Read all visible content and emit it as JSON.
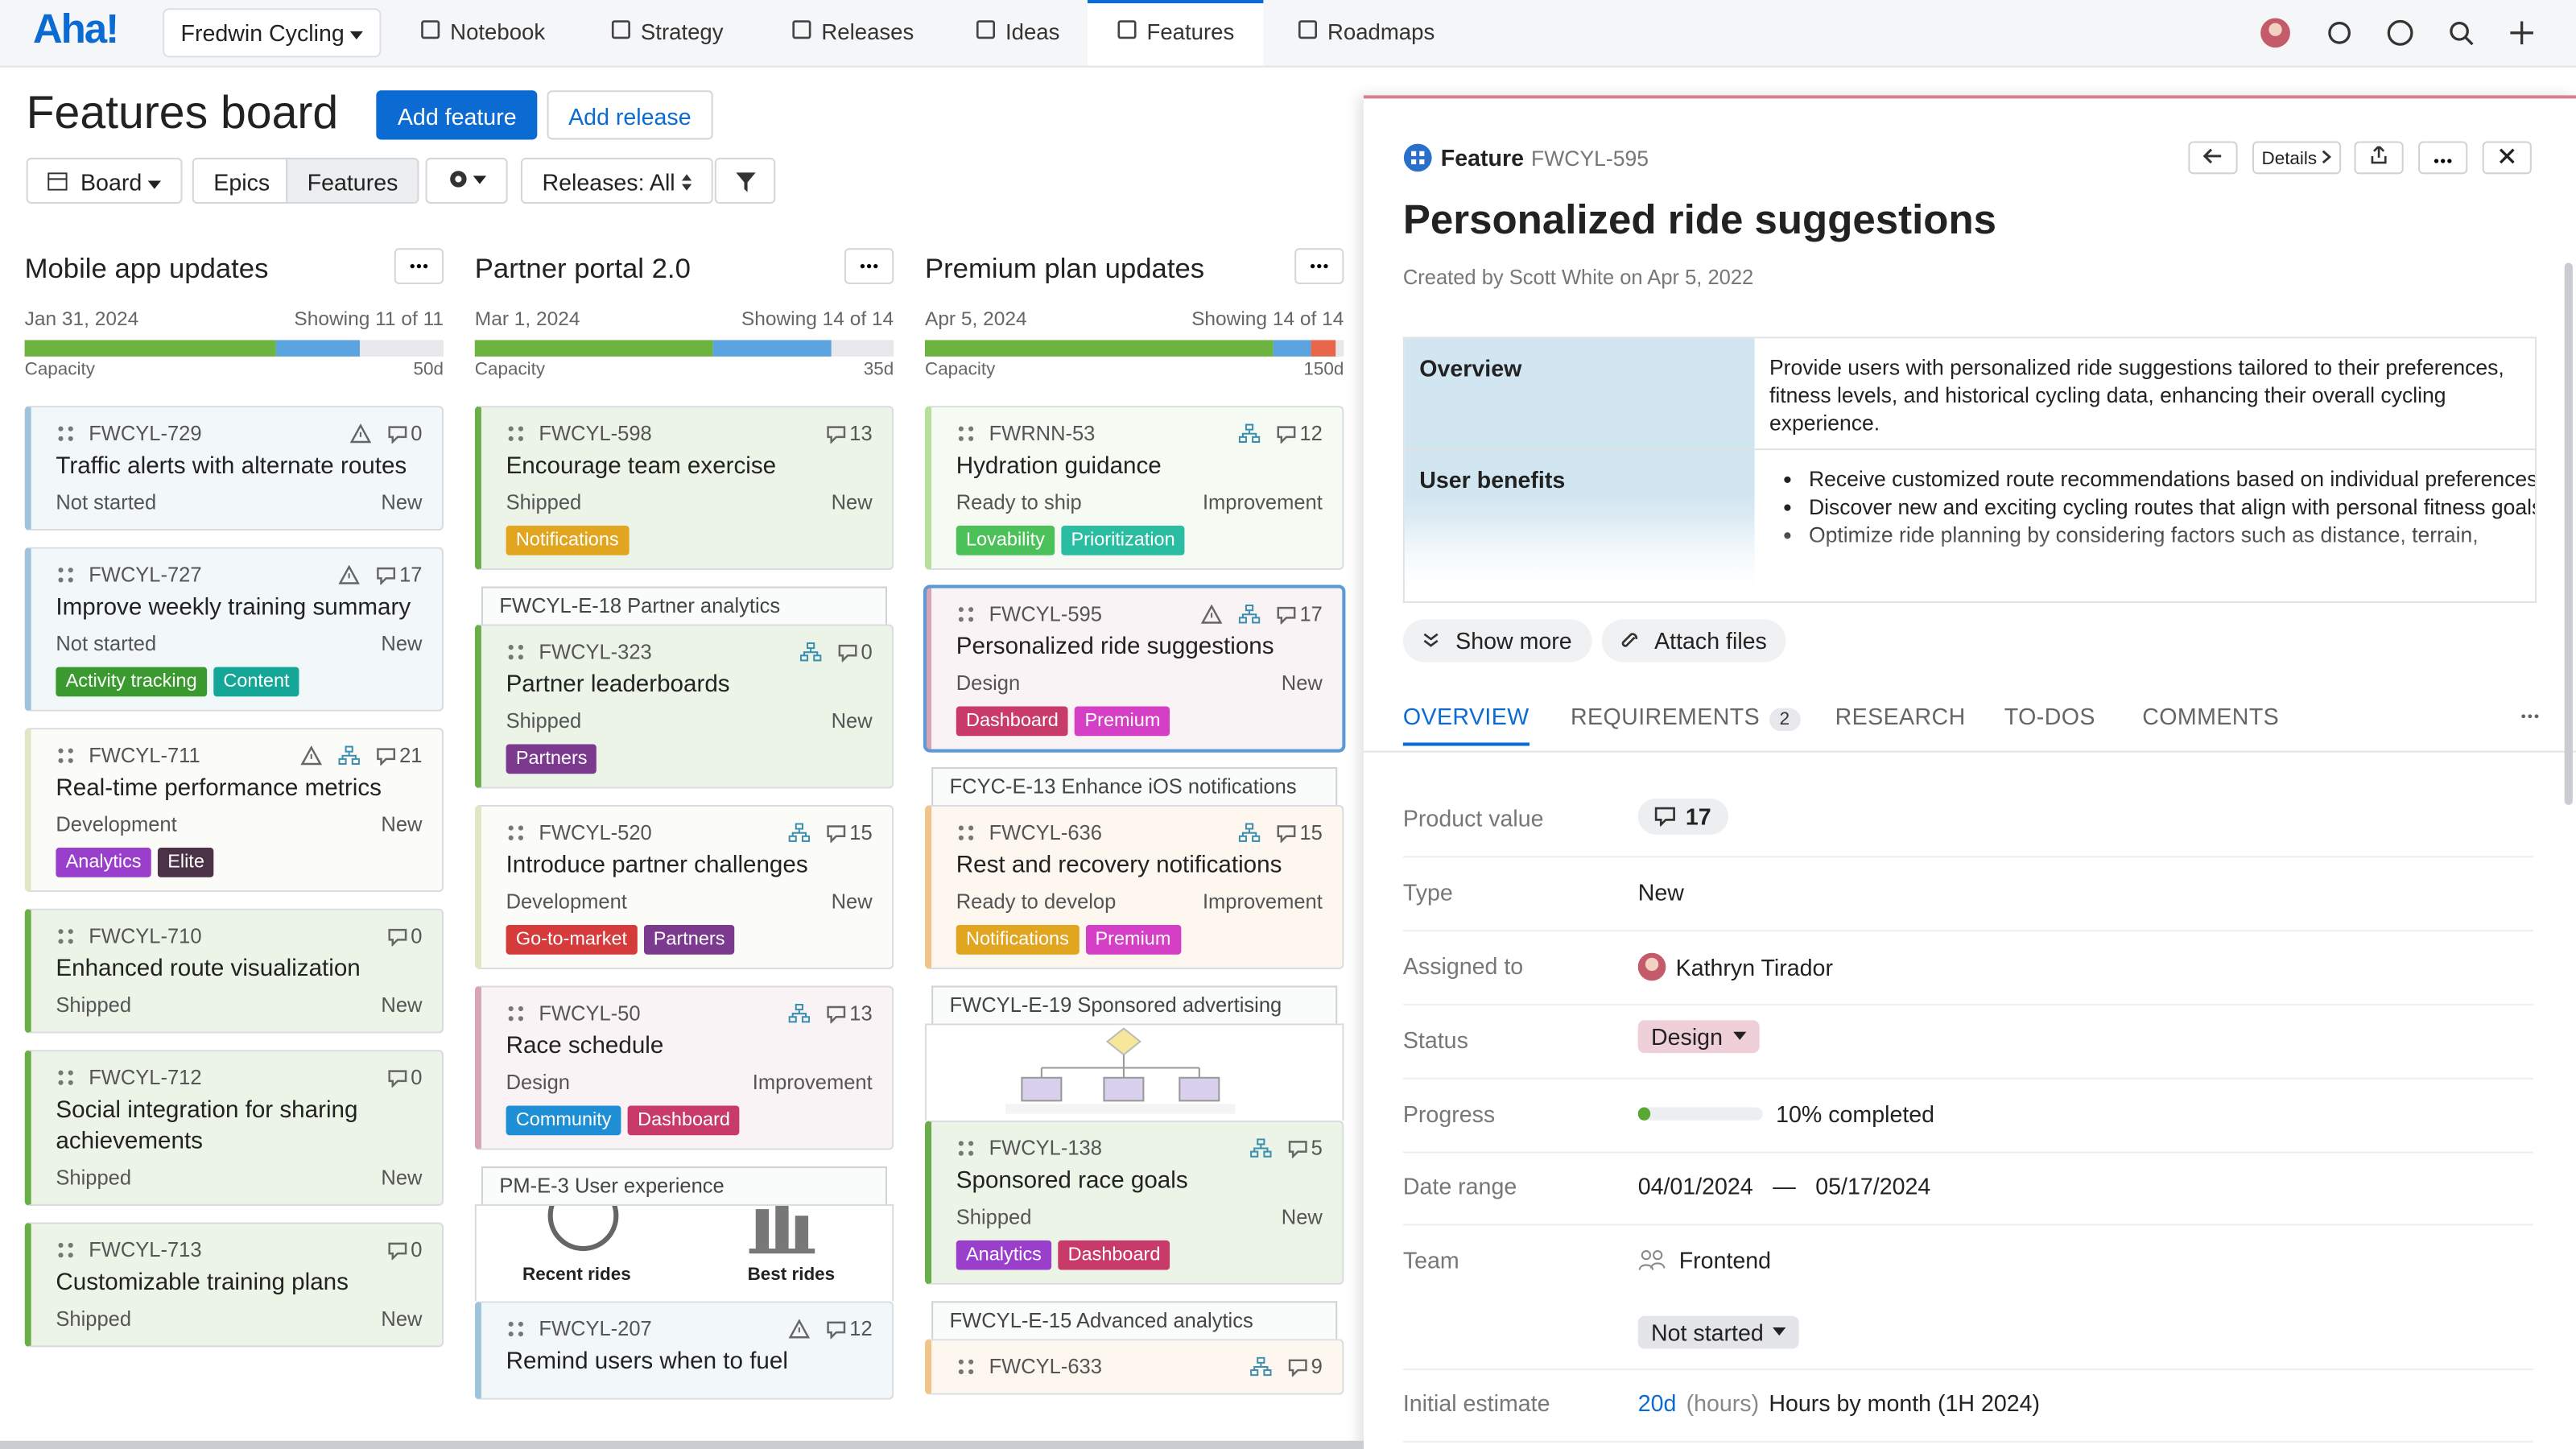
{
  "nav": {
    "logo": "Aha!",
    "workspace": "Fredwin Cycling",
    "tabs": [
      "Notebook",
      "Strategy",
      "Releases",
      "Ideas",
      "Features",
      "Roadmaps"
    ],
    "active_tab": 4
  },
  "toolbar": {
    "title": "Features board",
    "add_feature": "Add feature",
    "add_release": "Add release",
    "board": "Board",
    "epics": "Epics",
    "features": "Features",
    "releases_filter": "Releases: All"
  },
  "columns": [
    {
      "name": "Mobile app updates",
      "date": "Jan 31, 2024",
      "showing": "Showing 11 of 11",
      "capacity_label": "Capacity",
      "capacity": "50d",
      "items": [
        {
          "id": "FWCYL-729",
          "warning": true,
          "comments": 0,
          "title": "Traffic alerts with alternate routes",
          "status": "Not started",
          "type": "New",
          "color": "#9fc3db",
          "tags": []
        },
        {
          "id": "FWCYL-727",
          "warning": true,
          "comments": 17,
          "title": "Improve weekly training summary",
          "status": "Not started",
          "type": "New",
          "color": "#9fc3db",
          "tags": [
            {
              "label": "Activity tracking",
              "color": "#3b9a2f"
            },
            {
              "label": "Content",
              "color": "#14a697"
            }
          ]
        },
        {
          "id": "FWCYL-711",
          "warning": true,
          "children": true,
          "comments": 21,
          "title": "Real-time performance metrics",
          "status": "Development",
          "type": "New",
          "color": "#e3e6c6",
          "tags": [
            {
              "label": "Analytics",
              "color": "#9a3fcb"
            },
            {
              "label": "Elite",
              "color": "#4b3246"
            }
          ]
        },
        {
          "id": "FWCYL-710",
          "comments": 0,
          "title": "Enhanced route visualization",
          "status": "Shipped",
          "type": "New",
          "color": "#6aae4a",
          "tags": []
        },
        {
          "id": "FWCYL-712",
          "comments": 0,
          "title": "Social integration for sharing achievements",
          "status": "Shipped",
          "type": "New",
          "color": "#6aae4a",
          "tags": []
        },
        {
          "id": "FWCYL-713",
          "comments": 0,
          "title": "Customizable training plans",
          "status": "Shipped",
          "type": "New",
          "color": "#6aae4a",
          "tags": []
        }
      ]
    },
    {
      "name": "Partner portal 2.0",
      "date": "Mar 1, 2024",
      "showing": "Showing 14 of 14",
      "capacity_label": "Capacity",
      "capacity": "35d",
      "items": [
        {
          "id": "FWCYL-598",
          "comments": 13,
          "title": "Encourage team exercise",
          "status": "Shipped",
          "type": "New",
          "color": "#6aae4a",
          "tags": [
            {
              "label": "Notifications",
              "color": "#e1a520"
            }
          ]
        },
        {
          "epic": "FWCYL-E-18 Partner analytics"
        },
        {
          "id": "FWCYL-323",
          "children": true,
          "comments": 0,
          "title": "Partner leaderboards",
          "status": "Shipped",
          "type": "New",
          "color": "#6aae4a",
          "tags": [
            {
              "label": "Partners",
              "color": "#7b3a8e"
            }
          ]
        },
        {
          "id": "FWCYL-520",
          "children": true,
          "comments": 15,
          "title": "Introduce partner challenges",
          "status": "Development",
          "type": "New",
          "color": "#e3e6c6",
          "tags": [
            {
              "label": "Go-to-market",
              "color": "#d63b3b"
            },
            {
              "label": "Partners",
              "color": "#7b3a8e"
            }
          ]
        },
        {
          "id": "FWCYL-50",
          "children": true,
          "comments": 13,
          "title": "Race schedule",
          "status": "Design",
          "type": "Improvement",
          "color": "#d8a3b3",
          "tags": [
            {
              "label": "Community",
              "color": "#1e8fd5"
            },
            {
              "label": "Dashboard",
              "color": "#c83a6a"
            }
          ]
        },
        {
          "epic": "PM-E-3 User experience",
          "image_labels": [
            "Recent rides",
            "Best rides"
          ]
        },
        {
          "id": "FWCYL-207",
          "warning": true,
          "comments": 12,
          "title": "Remind users when to fuel",
          "status": "",
          "type": "",
          "color": "#9fc3db",
          "tags": []
        }
      ]
    },
    {
      "name": "Premium plan updates",
      "date": "Apr 5, 2024",
      "showing": "Showing 14 of 14",
      "capacity_label": "Capacity",
      "capacity": "150d",
      "items": [
        {
          "id": "FWRNN-53",
          "children": true,
          "comments": 12,
          "title": "Hydration guidance",
          "status": "Ready to ship",
          "type": "Improvement",
          "color": "#b6e09a",
          "tags": [
            {
              "label": "Lovability",
              "color": "#4cc15a"
            },
            {
              "label": "Prioritization",
              "color": "#2bbda2"
            }
          ]
        },
        {
          "id": "FWCYL-595",
          "warning": true,
          "children": true,
          "comments": 17,
          "title": "Personalized ride suggestions",
          "status": "Design",
          "type": "New",
          "color": "#d8a3b3",
          "selected": true,
          "tags": [
            {
              "label": "Dashboard",
              "color": "#c83a6a"
            },
            {
              "label": "Premium",
              "color": "#d53fc6"
            }
          ]
        },
        {
          "epic": "FCYC-E-13 Enhance iOS notifications"
        },
        {
          "id": "FWCYL-636",
          "children": true,
          "comments": 15,
          "title": "Rest and recovery notifications",
          "status": "Ready to develop",
          "type": "Improvement",
          "color": "#f1c48a",
          "tags": [
            {
              "label": "Notifications",
              "color": "#e1a520"
            },
            {
              "label": "Premium",
              "color": "#d53fc6"
            }
          ]
        },
        {
          "epic": "FWCYL-E-19 Sponsored advertising",
          "diagram": true
        },
        {
          "id": "FWCYL-138",
          "children": true,
          "comments": 5,
          "title": "Sponsored race goals",
          "status": "Shipped",
          "type": "New",
          "color": "#6aae4a",
          "tags": [
            {
              "label": "Analytics",
              "color": "#9a3fcb"
            },
            {
              "label": "Dashboard",
              "color": "#c83a6a"
            }
          ]
        },
        {
          "epic": "FWCYL-E-15 Advanced analytics"
        },
        {
          "id": "FWCYL-633",
          "children": true,
          "comments": 9,
          "title": "",
          "status": "",
          "type": "",
          "color": "#f1c48a",
          "tags": []
        }
      ]
    }
  ],
  "detail": {
    "kind": "Feature",
    "ref": "FWCYL-595",
    "details": "Details",
    "title": "Personalized ride suggestions",
    "created": "Created by Scott White on Apr 5, 2022",
    "overview_label": "Overview",
    "overview": "Provide users with personalized ride suggestions tailored to their preferences, fitness levels, and historical cycling data, enhancing their overall cycling experience.",
    "benefits_label": "User benefits",
    "benefits": [
      "Receive customized route recommendations based on individual preferences.",
      "Discover new and exciting cycling routes that align with personal fitness goals.",
      "Optimize ride planning by considering factors such as distance, terrain,"
    ],
    "show_more": "Show more",
    "attach": "Attach files",
    "tabs": [
      {
        "label": "OVERVIEW"
      },
      {
        "label": "REQUIREMENTS",
        "count": 2
      },
      {
        "label": "RESEARCH"
      },
      {
        "label": "TO-DOS"
      },
      {
        "label": "COMMENTS"
      }
    ],
    "fields": {
      "product_value_label": "Product value",
      "product_value": 17,
      "type_label": "Type",
      "type": "New",
      "assigned_label": "Assigned to",
      "assigned": "Kathryn Tirador",
      "status_label": "Status",
      "status": "Design",
      "progress_label": "Progress",
      "progress": {
        "value": 10,
        "label": "10% completed"
      },
      "date_label": "Date range",
      "start": "04/01/2024",
      "dash": "—",
      "end": "05/17/2024",
      "team_label": "Team",
      "team": "Frontend",
      "team_status": "Not started",
      "estimate_label": "Initial estimate",
      "estimate": "20d",
      "estimate_unit": "(hours)",
      "estimate_link": "Hours by month (1H 2024)"
    }
  }
}
